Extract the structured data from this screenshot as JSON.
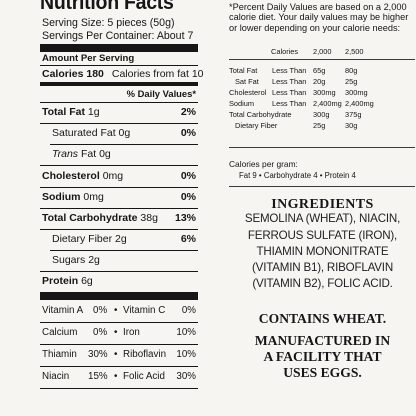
{
  "facts": {
    "title": "Nutrition Facts",
    "serving_size": "Serving Size: 5 pieces (50g)",
    "servings_per_container": "Servings Per Container: About 7",
    "amount_per_serving": "Amount Per Serving",
    "calories_label": "Calories 180",
    "calories_from_fat": "Calories from fat 10",
    "daily_values_header": "% Daily Values",
    "footnote_marker": "*",
    "rows": {
      "total_fat": {
        "name": "Total Fat",
        "amount": "1g",
        "dv": "2%"
      },
      "saturated_fat": {
        "name": "Saturated Fat",
        "amount": "0g",
        "dv": "0%"
      },
      "trans_fat": {
        "name_italic": "Trans",
        "name_rest": "Fat",
        "amount": "0g"
      },
      "cholesterol": {
        "name": "Cholesterol",
        "amount": "0mg",
        "dv": "0%"
      },
      "sodium": {
        "name": "Sodium",
        "amount": "0mg",
        "dv": "0%"
      },
      "total_carb": {
        "name": "Total Carbohydrate",
        "amount": "38g",
        "dv": "13%"
      },
      "fiber": {
        "name": "Dietary Fiber",
        "amount": "2g",
        "dv": "6%"
      },
      "sugars": {
        "name": "Sugars",
        "amount": "2g"
      },
      "protein": {
        "name": "Protein",
        "amount": "6g"
      }
    },
    "vitamins": [
      {
        "left_name": "Vitamin A",
        "left_pct": "0%",
        "right_name": "Vitamin C",
        "right_pct": "0%"
      },
      {
        "left_name": "Calcium",
        "left_pct": "0%",
        "right_name": "Iron",
        "right_pct": "10%"
      },
      {
        "left_name": "Thiamin",
        "left_pct": "30%",
        "right_name": "Riboflavin",
        "right_pct": "10%"
      },
      {
        "left_name": "Niacin",
        "left_pct": "15%",
        "right_name": "Folic Acid",
        "right_pct": "30%"
      }
    ],
    "bullet": "•"
  },
  "footnote": {
    "text": "*Percent Daily Values are based on a 2,000 calorie diet. Your daily values may be higher or lower depending on your calorie needs:",
    "header": {
      "calories": "Calories",
      "c2000": "2,000",
      "c2500": "2,500"
    },
    "rows": [
      {
        "nutrient": "Total Fat",
        "limit": "Less Than",
        "v1": "65g",
        "v2": "80g"
      },
      {
        "nutrient": "Sat Fat",
        "limit": "Less Than",
        "v1": "20g",
        "v2": "25g"
      },
      {
        "nutrient": "Cholesterol",
        "limit": "Less Than",
        "v1": "300mg",
        "v2": "300mg"
      },
      {
        "nutrient": "Sodium",
        "limit": "Less Than",
        "v1": "2,400mg",
        "v2": "2,400mg"
      },
      {
        "nutrient": "Total Carbohydrate",
        "limit": "",
        "v1": "300g",
        "v2": "375g"
      },
      {
        "nutrient": "Dietary Fiber",
        "limit": "",
        "v1": "25g",
        "v2": "30g"
      }
    ],
    "calories_per_gram": "Calories per gram:",
    "cal_breakdown": "Fat 9  •  Carbohydrate 4  •  Protein 4"
  },
  "ingredients": {
    "title": "INGREDIENTS",
    "lines": [
      "SEMOLINA (WHEAT), NIACIN,",
      "FERROUS SULFATE (IRON),",
      "THIAMIN MONONITRATE",
      "(VITAMIN B1), RIBOFLAVIN",
      "(VITAMIN B2), FOLIC ACID."
    ],
    "contains": "CONTAINS WHEAT.",
    "facility_lines": [
      "MANUFACTURED IN",
      "A FACILITY THAT",
      "USES EGGS."
    ]
  }
}
